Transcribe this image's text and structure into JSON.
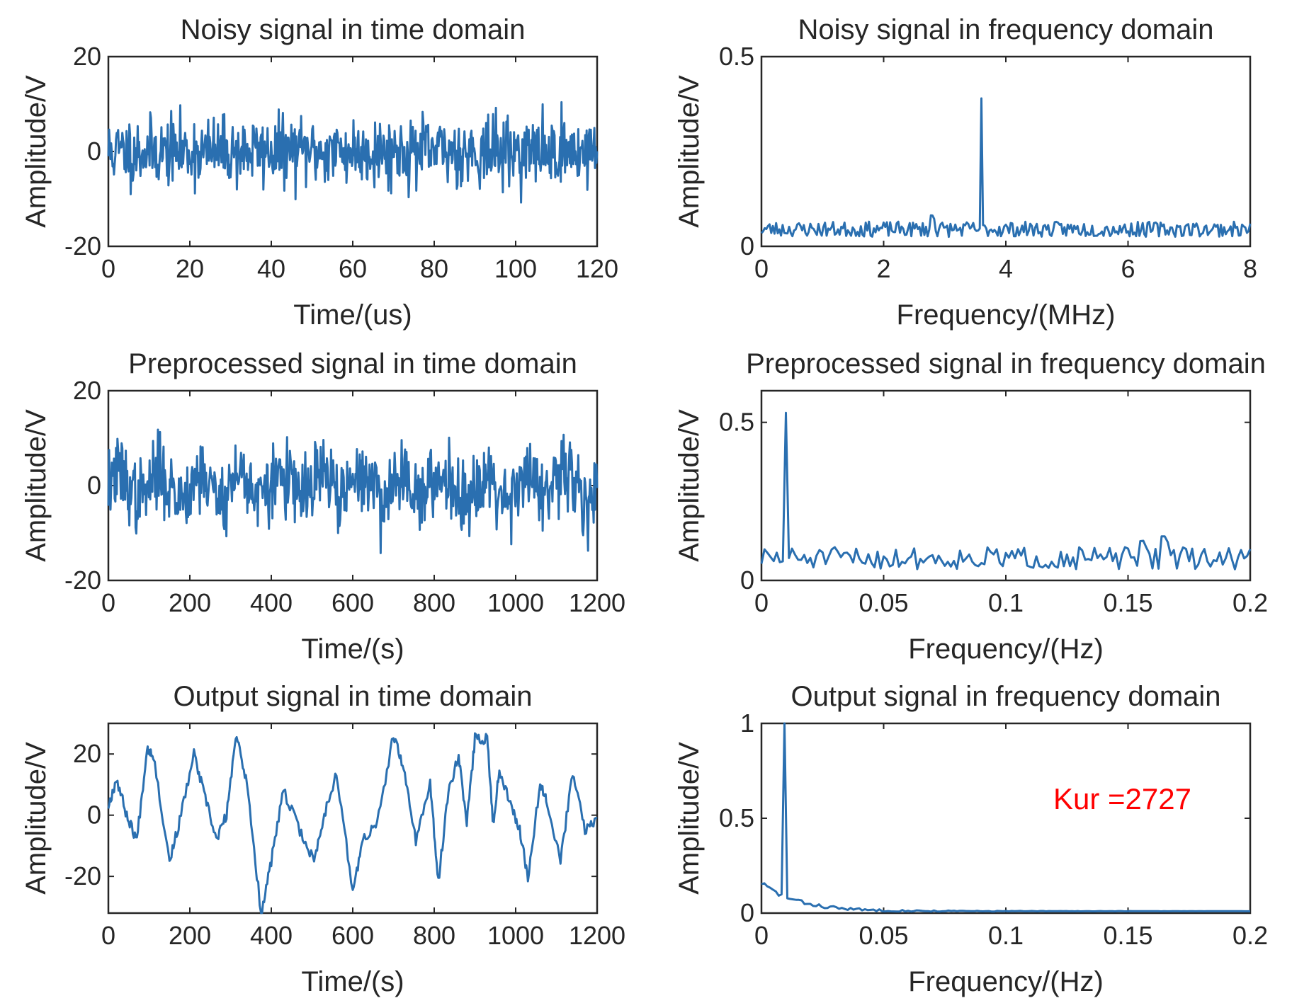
{
  "colors": {
    "line": "#2a6fb0",
    "annotation": "#ff0000",
    "axis": "#262626"
  },
  "chart_data": [
    {
      "type": "line",
      "title": "Noisy signal in time domain",
      "xlabel": "Time/(us)",
      "ylabel": "Amplitude/V",
      "xlim": [
        0,
        120
      ],
      "ylim": [
        -20,
        20
      ],
      "xticks": [
        0,
        20,
        40,
        60,
        80,
        100,
        120
      ],
      "xticklabels": [
        "0",
        "20",
        "40",
        "60",
        "80",
        "100",
        "120"
      ],
      "yticks": [
        -20,
        0,
        20
      ],
      "yticklabels": [
        "-20",
        "0",
        "20"
      ],
      "series": [
        {
          "name": "noisy signal",
          "kind": "noise",
          "points": 700,
          "seed": 11,
          "center": 0,
          "amp": 6.5
        }
      ]
    },
    {
      "type": "line",
      "title": "Noisy signal in frequency domain",
      "xlabel": "Frequency/(MHz)",
      "ylabel": "Amplitude/V",
      "xlim": [
        0,
        8
      ],
      "ylim": [
        0,
        0.5
      ],
      "xticks": [
        0,
        2,
        4,
        6,
        8
      ],
      "xticklabels": [
        "0",
        "2",
        "4",
        "6",
        "8"
      ],
      "yticks": [
        0,
        0.5
      ],
      "yticklabels": [
        "0",
        "0.5"
      ],
      "series": [
        {
          "name": "spectrum",
          "kind": "spectrum",
          "points": 300,
          "seed": 23,
          "base": 0.045,
          "jitter": 0.02,
          "peak_x": 3.6,
          "peak_y": 0.39,
          "extra": [
            [
              2.8,
              0.09
            ]
          ]
        }
      ]
    },
    {
      "type": "line",
      "title": "Preprocessed signal in time domain",
      "xlabel": "Time/(s)",
      "ylabel": "Amplitude/V",
      "xlim": [
        0,
        1200
      ],
      "ylim": [
        -20,
        20
      ],
      "xticks": [
        0,
        200,
        400,
        600,
        800,
        1000,
        1200
      ],
      "xticklabels": [
        "0",
        "200",
        "400",
        "600",
        "800",
        "1000",
        "1200"
      ],
      "yticks": [
        -20,
        0,
        20
      ],
      "yticklabels": [
        "-20",
        "0",
        "20"
      ],
      "series": [
        {
          "name": "preprocessed signal",
          "kind": "noise",
          "points": 700,
          "seed": 37,
          "center": 0,
          "amp": 7.0,
          "wave_amp": 2.5,
          "wave_period": 100
        }
      ]
    },
    {
      "type": "line",
      "title": "Preprocessed signal in frequency domain",
      "xlabel": "Frequency/(Hz)",
      "ylabel": "Amplitude/V",
      "xlim": [
        0,
        0.2
      ],
      "ylim": [
        0,
        0.6
      ],
      "xticks": [
        0,
        0.05,
        0.1,
        0.15,
        0.2
      ],
      "xticklabels": [
        "0",
        "0.05",
        "0.1",
        "0.15",
        "0.2"
      ],
      "yticks": [
        0,
        0.5
      ],
      "yticklabels": [
        "0",
        "0.5"
      ],
      "series": [
        {
          "name": "spectrum",
          "kind": "spectrum",
          "points": 160,
          "seed": 51,
          "base": 0.07,
          "jitter": 0.035,
          "peak_x": 0.01,
          "peak_y": 0.53,
          "extra": [
            [
              0.165,
              0.16
            ],
            [
              0.156,
              0.13
            ],
            [
              0.2,
              0.1
            ]
          ]
        }
      ]
    },
    {
      "type": "line",
      "title": "Output signal in time domain",
      "xlabel": "Time/(s)",
      "ylabel": "Amplitude/V",
      "xlim": [
        0,
        1200
      ],
      "ylim": [
        -32,
        30
      ],
      "xticks": [
        0,
        200,
        400,
        600,
        800,
        1000,
        1200
      ],
      "xticklabels": [
        "0",
        "200",
        "400",
        "600",
        "800",
        "1000",
        "1200"
      ],
      "yticks": [
        -20,
        0,
        20
      ],
      "yticklabels": [
        "-20",
        "0",
        "20"
      ],
      "series": [
        {
          "name": "output signal",
          "kind": "path",
          "seed": 67,
          "ripple": 1.8,
          "x": [
            0,
            20,
            45,
            70,
            95,
            110,
            150,
            175,
            210,
            235,
            265,
            290,
            315,
            340,
            375,
            400,
            430,
            470,
            505,
            530,
            560,
            600,
            625,
            660,
            700,
            725,
            755,
            790,
            810,
            835,
            860,
            880,
            900,
            930,
            945,
            960,
            990,
            1010,
            1030,
            1060,
            1075,
            1110,
            1140,
            1170,
            1200
          ],
          "y": [
            3,
            12,
            0,
            -8,
            22,
            20,
            -15,
            -2,
            20,
            7,
            -8,
            0,
            27,
            10,
            -32,
            -15,
            8,
            -5,
            -15,
            0,
            14,
            -25,
            -8,
            -3,
            26,
            15,
            -8,
            10,
            -22,
            8,
            20,
            -3,
            25,
            25,
            -3,
            15,
            3,
            -5,
            -20,
            10,
            6,
            -15,
            14,
            -5,
            -1
          ]
        }
      ]
    },
    {
      "type": "line",
      "title": "Output signal in frequency domain",
      "xlabel": "Frequency/(Hz)",
      "ylabel": "Amplitude/V",
      "xlim": [
        0,
        0.2
      ],
      "ylim": [
        0,
        1
      ],
      "xticks": [
        0,
        0.05,
        0.1,
        0.15,
        0.2
      ],
      "xticklabels": [
        "0",
        "0.05",
        "0.1",
        "0.15",
        "0.2"
      ],
      "yticks": [
        0,
        0.5,
        1
      ],
      "yticklabels": [
        "0",
        "0.5",
        "1"
      ],
      "annotation": "Kur =2727",
      "series": [
        {
          "name": "spectrum",
          "kind": "decay",
          "points": 170,
          "seed": 83,
          "start": 0.16,
          "tail": 0.01,
          "jitter": 0.015,
          "peak_x": 0.01,
          "peak_y": 1.0
        }
      ]
    }
  ]
}
